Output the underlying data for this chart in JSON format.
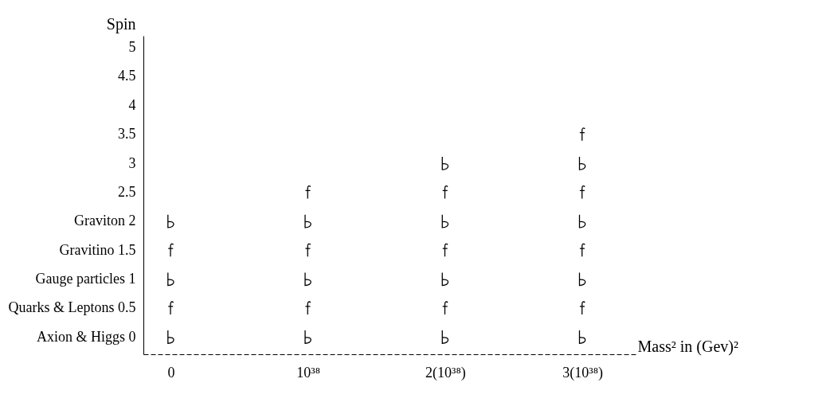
{
  "chart_data": {
    "type": "scatter",
    "xlabel": "Mass² in (Gev)²",
    "ylabel": "Spin",
    "xlim": [
      -2e+37,
      3.4e+38
    ],
    "ylim": [
      -0.3,
      5.2
    ],
    "xticks": [
      0,
      {
        "value": 1e+38,
        "label": "10³⁸"
      },
      {
        "value": 2e+38,
        "label": "2(10³⁸)"
      },
      {
        "value": 3e+38,
        "label": "3(10³⁸)"
      }
    ],
    "yticks": [
      {
        "value": 0,
        "label": "Axion & Higgs 0"
      },
      {
        "value": 0.5,
        "label": "Quarks & Leptons 0.5"
      },
      {
        "value": 1,
        "label": "Gauge particles 1"
      },
      {
        "value": 1.5,
        "label": "Gravitino 1.5"
      },
      {
        "value": 2,
        "label": "Graviton 2"
      },
      2.5,
      3,
      3.5,
      4,
      4.5,
      5
    ],
    "grid": false,
    "legend": false,
    "series": [
      {
        "color": "#000000",
        "x": [
          0,
          0,
          0,
          1e+38,
          1e+38,
          1e+38,
          2e+38,
          2e+38,
          2e+38,
          2e+38,
          3e+38,
          3e+38,
          3e+38,
          3e+38
        ],
        "values": [
          0,
          1,
          2,
          0,
          1,
          2,
          0,
          1,
          2,
          3,
          0,
          1,
          2,
          3
        ]
      },
      {
        "color": "#000000",
        "x": [
          0,
          0,
          1e+38,
          1e+38,
          1e+38,
          2e+38,
          2e+38,
          2e+38,
          3e+38,
          3e+38,
          3e+38,
          3e+38
        ],
        "values": [
          0.5,
          1.5,
          0.5,
          1.5,
          2.5,
          0.5,
          1.5,
          2.5,
          0.5,
          1.5,
          2.5,
          3.5
        ]
      }
    ]
  }
}
